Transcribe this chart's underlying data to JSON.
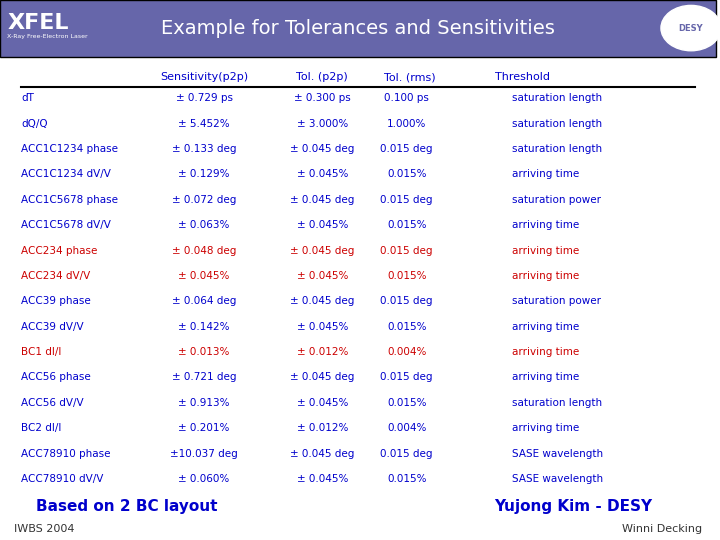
{
  "title": "Example for Tolerances and Sensitivities",
  "header_bg": "#6666aa",
  "header_text_color": "#ffffff",
  "body_bg": "#ffffff",
  "blue_color": "#0000cc",
  "red_color": "#cc0000",
  "col_headers": [
    "Sensitivity(p2p)",
    "Tol. (p2p)",
    "Tol. (rms)",
    "Threshold"
  ],
  "rows": [
    {
      "name": "dT",
      "color": "blue",
      "s": "± 0.729 ps",
      "tp": "± 0.300 ps",
      "tr": "0.100 ps",
      "th": "saturation length"
    },
    {
      "name": "dQ/Q",
      "color": "blue",
      "s": "± 5.452%",
      "tp": "± 3.000%",
      "tr": "1.000%",
      "th": "saturation length"
    },
    {
      "name": "ACC1C1234 phase",
      "color": "blue",
      "s": "± 0.133 deg",
      "tp": "± 0.045 deg",
      "tr": "0.015 deg",
      "th": "saturation length"
    },
    {
      "name": "ACC1C1234 dV/V",
      "color": "blue",
      "s": "± 0.129%",
      "tp": "± 0.045%",
      "tr": "0.015%",
      "th": "arriving time"
    },
    {
      "name": "ACC1C5678 phase",
      "color": "blue",
      "s": "± 0.072 deg",
      "tp": "± 0.045 deg",
      "tr": "0.015 deg",
      "th": "saturation power"
    },
    {
      "name": "ACC1C5678 dV/V",
      "color": "blue",
      "s": "± 0.063%",
      "tp": "± 0.045%",
      "tr": "0.015%",
      "th": "arriving time"
    },
    {
      "name": "ACC234 phase",
      "color": "red",
      "s": "± 0.048 deg",
      "tp": "± 0.045 deg",
      "tr": "0.015 deg",
      "th": "arriving time"
    },
    {
      "name": "ACC234 dV/V",
      "color": "red",
      "s": "± 0.045%",
      "tp": "± 0.045%",
      "tr": "0.015%",
      "th": "arriving time"
    },
    {
      "name": "ACC39 phase",
      "color": "blue",
      "s": "± 0.064 deg",
      "tp": "± 0.045 deg",
      "tr": "0.015 deg",
      "th": "saturation power"
    },
    {
      "name": "ACC39 dV/V",
      "color": "blue",
      "s": "± 0.142%",
      "tp": "± 0.045%",
      "tr": "0.015%",
      "th": "arriving time"
    },
    {
      "name": "BC1 dI/I",
      "color": "red",
      "s": "± 0.013%",
      "tp": "± 0.012%",
      "tr": "0.004%",
      "th": "arriving time"
    },
    {
      "name": "ACC56 phase",
      "color": "blue",
      "s": "± 0.721 deg",
      "tp": "± 0.045 deg",
      "tr": "0.015 deg",
      "th": "arriving time"
    },
    {
      "name": "ACC56 dV/V",
      "color": "blue",
      "s": "± 0.913%",
      "tp": "± 0.045%",
      "tr": "0.015%",
      "th": "saturation length"
    },
    {
      "name": "BC2 dI/I",
      "color": "blue",
      "s": "± 0.201%",
      "tp": "± 0.012%",
      "tr": "0.004%",
      "th": "arriving time"
    },
    {
      "name": "ACC78910 phase",
      "color": "blue",
      "s": "±10.037 deg",
      "tp": "± 0.045 deg",
      "tr": "0.015 deg",
      "th": "SASE wavelength"
    },
    {
      "name": "ACC78910 dV/V",
      "color": "blue",
      "s": "± 0.060%",
      "tp": "± 0.045%",
      "tr": "0.015%",
      "th": "SASE wavelength"
    }
  ],
  "footer_left1": "Based on 2 BC layout",
  "footer_right1": "Yujong Kim - DESY",
  "footer_left2": "IWBS 2004",
  "footer_right2": "Winni Decking"
}
